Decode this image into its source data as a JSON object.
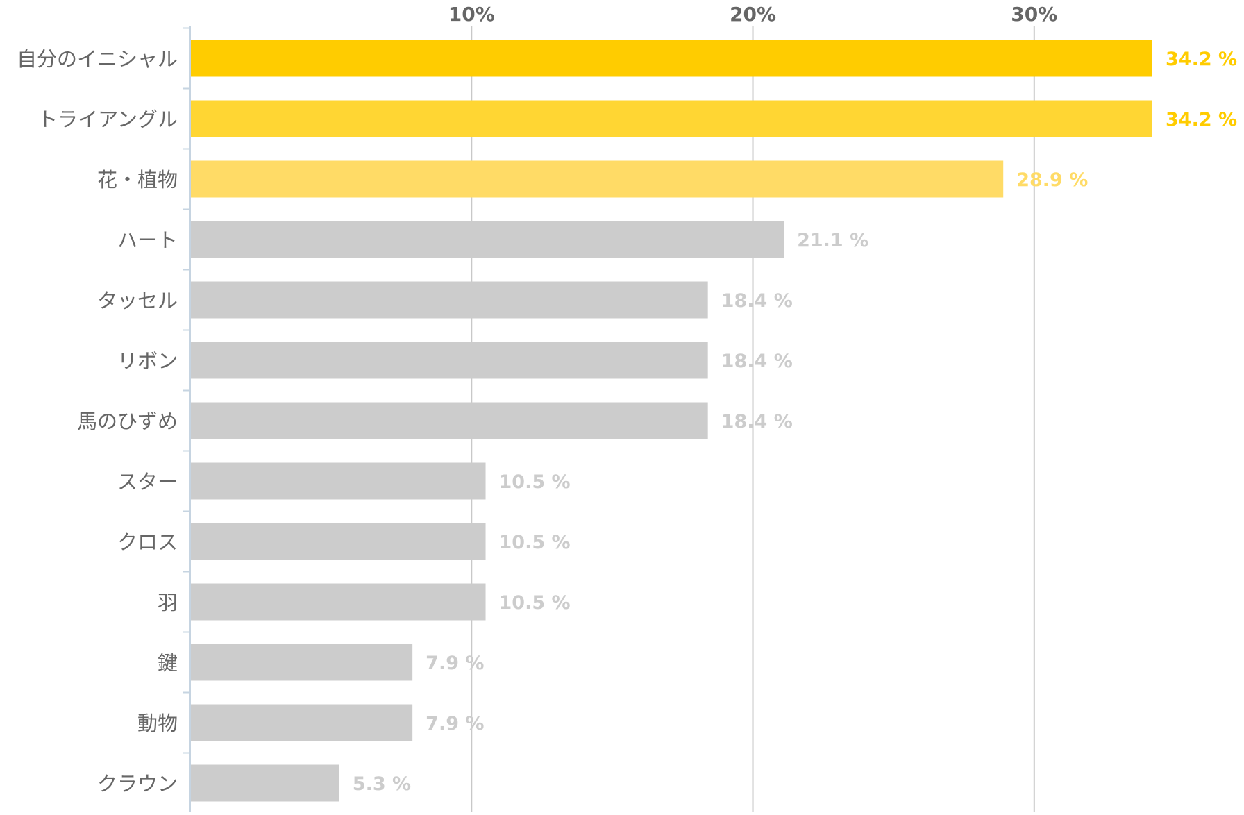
{
  "chart_data": {
    "type": "bar",
    "orientation": "horizontal",
    "title": "",
    "xlabel": "",
    "ylabel": "",
    "xlim": [
      0,
      34.2
    ],
    "x_ticks": [
      10,
      20,
      30
    ],
    "x_tick_labels": [
      "10%",
      "20%",
      "30%"
    ],
    "grid": true,
    "categories": [
      "自分のイニシャル",
      "トライアングル",
      "花・植物",
      "ハート",
      "タッセル",
      "リボン",
      "馬のひずめ",
      "スター",
      "クロス",
      "羽",
      "鍵",
      "動物",
      "クラウン"
    ],
    "values": [
      34.2,
      34.2,
      28.9,
      21.1,
      18.4,
      18.4,
      18.4,
      10.5,
      10.5,
      10.5,
      7.9,
      7.9,
      5.3
    ],
    "value_labels": [
      "34.2 %",
      "34.2 %",
      "28.9 %",
      "21.1 %",
      "18.4 %",
      "18.4 %",
      "18.4 %",
      "10.5 %",
      "10.5 %",
      "10.5 %",
      "7.9 %",
      "7.9 %",
      "5.3 %"
    ],
    "bar_colors": [
      "#ffcc00",
      "#ffd633",
      "#ffdb66",
      "#cccccc",
      "#cccccc",
      "#cccccc",
      "#cccccc",
      "#cccccc",
      "#cccccc",
      "#cccccc",
      "#cccccc",
      "#cccccc",
      "#cccccc"
    ],
    "label_colors": [
      "#ffcc00",
      "#ffcc00",
      "#ffdb66",
      "#cccccc",
      "#cccccc",
      "#cccccc",
      "#cccccc",
      "#cccccc",
      "#cccccc",
      "#cccccc",
      "#cccccc",
      "#cccccc",
      "#cccccc"
    ],
    "colors": {
      "grid": "#c8c8c8",
      "axis": "#c6d4e1",
      "category_text": "#666666",
      "tick_text": "#666666"
    }
  }
}
